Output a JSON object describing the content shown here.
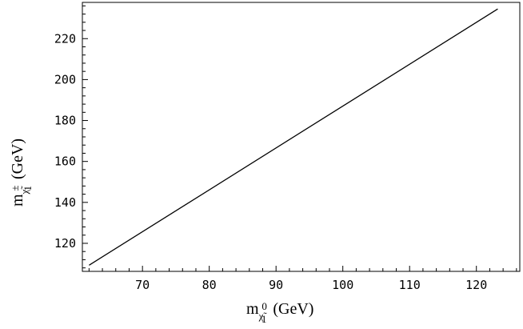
{
  "chart_data": {
    "type": "line",
    "title": "",
    "xlabel": {
      "prefix": "m",
      "symbol": "χ̃",
      "superscript": "0",
      "subscript": "1",
      "unit": "(GeV)"
    },
    "ylabel": {
      "prefix": "m",
      "symbol": "χ̃",
      "superscript": "±",
      "subscript": "1",
      "unit": "(GeV)"
    },
    "xlim": [
      61,
      126.5
    ],
    "ylim": [
      106.3,
      237.7
    ],
    "x_ticks": [
      70,
      80,
      90,
      100,
      110,
      120
    ],
    "y_ticks": [
      120,
      140,
      160,
      180,
      200,
      220
    ],
    "grid": false,
    "series": [
      {
        "x": [
          62,
          123.2
        ],
        "y": [
          109.3,
          234.5
        ],
        "color": "#000000"
      }
    ]
  }
}
